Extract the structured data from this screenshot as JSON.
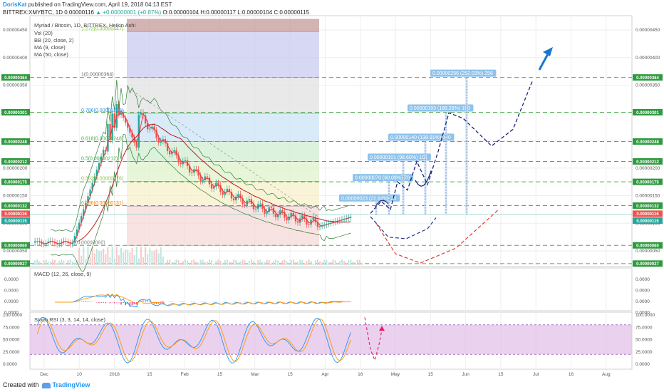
{
  "header": {
    "user": "DorisKat",
    "published": "published on TradingView.com, April 19, 2018 04:13 EST",
    "symbol_line": "BITTREX:XMYBTC, 1D",
    "last": "0.00000116",
    "change": "▲ +0.00000001 (+0.87%)",
    "ohlc": "O:0.00000104 H:0.00000117 L:0.00000104 C:0.00000115"
  },
  "legend": {
    "title": "Myriad / Bitcoin, 1D, BITTREX, Heikin Ashi",
    "vol": "Vol (20)",
    "bb": "BB (20, close, 2)",
    "ma9": "MA (9, close)",
    "ma50": "MA (50, close)",
    "macd": "MACD (12, 26, close, 9)",
    "stoch": "Stoch RSI (3, 3, 14, 14, close)"
  },
  "footer": {
    "created": "Created with",
    "brand": "TradingView"
  },
  "colors": {
    "up": "#26a69a",
    "down": "#ef5350",
    "accent": "#2196f3",
    "projection": "#1a237e",
    "dashed_green": "#4caf50"
  },
  "chart_data": [
    {
      "type": "candlestick",
      "x_ticks": [
        "Dec",
        "10",
        "2018",
        "15",
        "Feb",
        "15",
        "Mar",
        "15",
        "Apr",
        "16",
        "May",
        "15",
        "Jun",
        "15",
        "Jul",
        "16",
        "Aug"
      ],
      "y_ticks": [
        "0.00000450",
        "0.00000400",
        "0.00000350",
        "0.00000300",
        "0.00000250",
        "0.00000200",
        "0.00000150",
        "0.00000100",
        "0.00000050"
      ],
      "ylim": [
        2e-07,
        4.8e-06
      ],
      "level_badges": [
        "0.00000364",
        "0.00000301",
        "0.00000248",
        "0.00000212",
        "0.00000175",
        "0.00000132",
        "0.00000116",
        "0.00000115",
        "0.00000060",
        "0.00000027"
      ],
      "level_values": [
        3.64e-06,
        3.01e-06,
        2.48e-06,
        2.12e-06,
        1.75e-06,
        1.32e-06,
        1.16e-06,
        1.15e-06,
        6e-07,
        2.7e-07
      ],
      "fib_labels": [
        "1.272(0.00000447)",
        "1(0.00000364)",
        "0.786(0.00000299)",
        "0.618(0.00000248)",
        "0.5(0.00000212)",
        "0.382(0.00000176)",
        "0.236(0.00000131)",
        "0(0.00000060)"
      ],
      "fib_values": [
        4.47e-06,
        3.64e-06,
        2.99e-06,
        2.48e-06,
        2.12e-06,
        1.76e-06,
        1.31e-06,
        6e-07
      ],
      "projection_labels": [
        "0.00000023 (22.64%) 23",
        "0.00000070 (60.09%) 70",
        "0.00000101 (98.60%) 101",
        "0.00000140 (138.91%) 140",
        "0.00000193 (188.28%) 193",
        "0.00000256 (252.03%) 256"
      ],
      "projection_targets": [
        1.38e-06,
        1.75e-06,
        2.12e-06,
        2.48e-06,
        3.01e-06,
        3.64e-06
      ]
    },
    {
      "type": "line",
      "name": "MACD (12, 26, close, 9)",
      "y_ticks": [
        "0.0000",
        "0.0000",
        "0.0000",
        "0.0000"
      ]
    },
    {
      "type": "line",
      "name": "Stoch RSI (3, 3, 14, 14, close)",
      "y_ticks": [
        "100.0000",
        "75.0000",
        "50.0000",
        "25.0000",
        "0.0000"
      ],
      "ylim": [
        0,
        100
      ],
      "bands": [
        80,
        20
      ]
    }
  ]
}
